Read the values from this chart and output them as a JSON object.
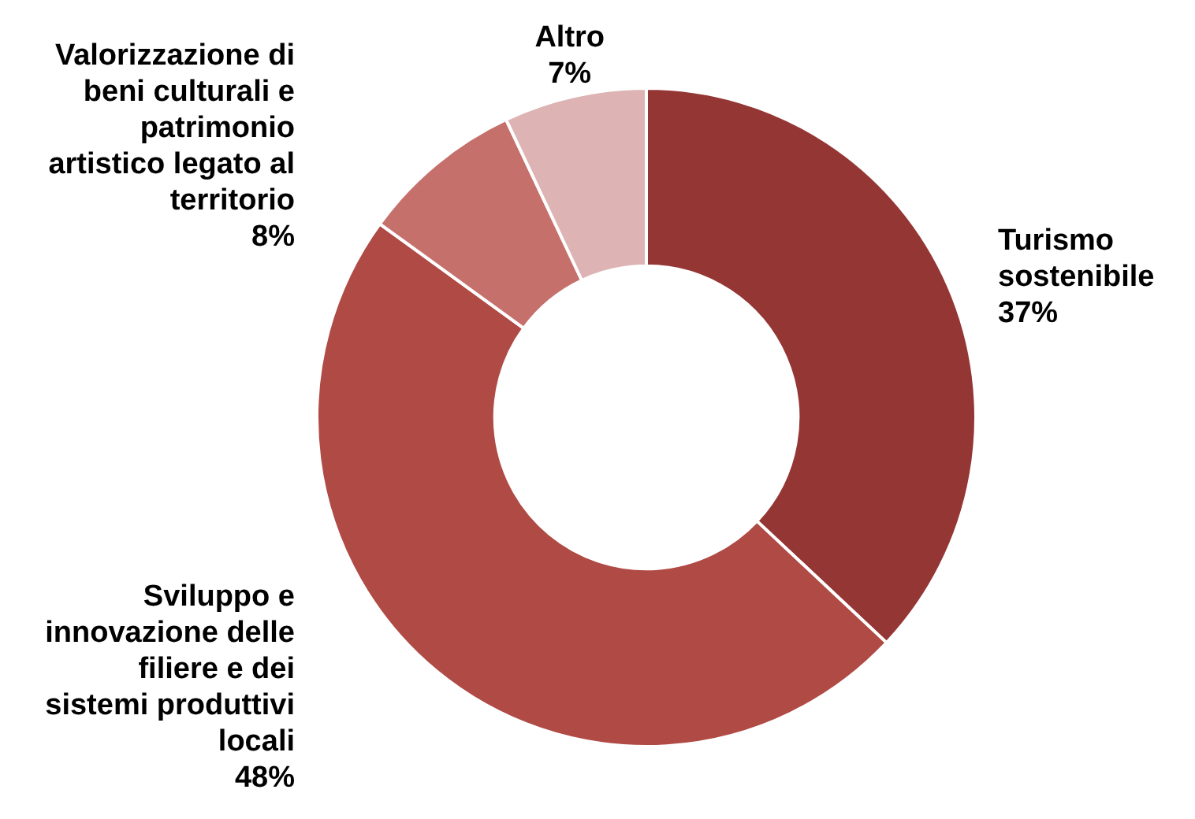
{
  "chart_data": {
    "type": "donut",
    "categories": [
      "Turismo sostenibile",
      "Sviluppo e innovazione delle filiere e dei sistemi produttivi locali",
      "Valorizzazione di beni culturali e patrimonio artistico legato al territorio",
      "Altro"
    ],
    "values": [
      37,
      48,
      8,
      7
    ],
    "value_labels": [
      "37%",
      "48%",
      "8%",
      "7%"
    ],
    "colors": [
      "#943634",
      "#b04a45",
      "#c6706c",
      "#ddb3b3"
    ],
    "legend": false
  }
}
